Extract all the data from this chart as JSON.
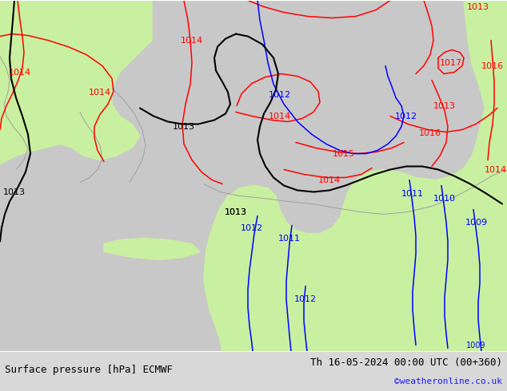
{
  "title_left": "Surface pressure [hPa] ECMWF",
  "title_right": "Th 16-05-2024 00:00 UTC (00+360)",
  "credit": "©weatheronline.co.uk",
  "bg_green": "#c8f0a0",
  "bg_gray": "#c8c8c8",
  "bg_white": "#e8e8e8",
  "coast_color": "#a0a0a0",
  "red": "#ff0000",
  "black": "#000000",
  "blue": "#0000ff",
  "fig_width": 6.34,
  "fig_height": 4.9,
  "dpi": 100,
  "bottom_bar_color": "#d8d8d8"
}
